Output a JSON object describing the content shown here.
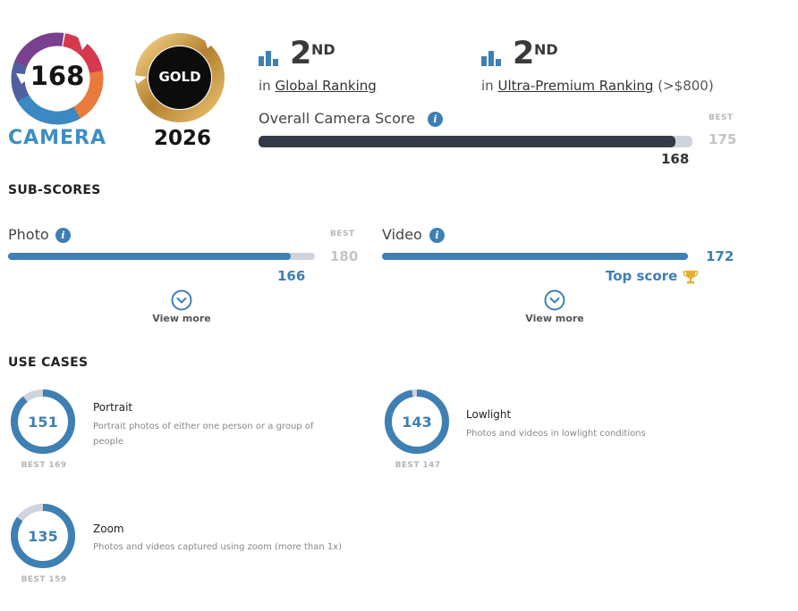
{
  "badge_camera": {
    "score": "168",
    "label": "CAMERA"
  },
  "badge_gold": {
    "label": "GOLD",
    "year": "2026"
  },
  "rankings": [
    {
      "num": "2",
      "suffix": "ND",
      "prefix": "in",
      "link": "Global Ranking",
      "extra": ""
    },
    {
      "num": "2",
      "suffix": "ND",
      "prefix": "in",
      "link": "Ultra-Premium Ranking",
      "extra": "(>$800)"
    }
  ],
  "overall": {
    "label": "Overall Camera Score",
    "best_label": "BEST",
    "best": "175",
    "score": "168",
    "progress": 0.96
  },
  "subscores": {
    "title": "SUB-SCORES",
    "photo": {
      "label": "Photo",
      "best_label": "BEST",
      "best": "180",
      "score": "166",
      "progress": 0.92,
      "view_more": "View more"
    },
    "video": {
      "score": "172",
      "label": "Video",
      "top_score": "Top score",
      "progress": 1.0,
      "view_more": "View more"
    }
  },
  "use_cases": {
    "title": "USE CASES",
    "items": [
      {
        "score": "151",
        "best": "BEST 169",
        "title": "Portrait",
        "desc": "Portrait photos of either one person or a group of people",
        "progress": 0.893
      },
      {
        "score": "143",
        "best": "BEST 147",
        "title": "Lowlight",
        "desc": "Photos and videos in lowlight conditions",
        "progress": 0.973
      },
      {
        "score": "135",
        "best": "BEST 159",
        "title": "Zoom",
        "desc": "Photos and videos captured using zoom (more than 1x)",
        "progress": 0.849
      }
    ]
  },
  "colors": {
    "accent": "#3e7fb4",
    "dark_bar": "#353b46",
    "track": "#cfd3db",
    "gold": "#c9a04a",
    "trophy": "#e6ae2c"
  }
}
